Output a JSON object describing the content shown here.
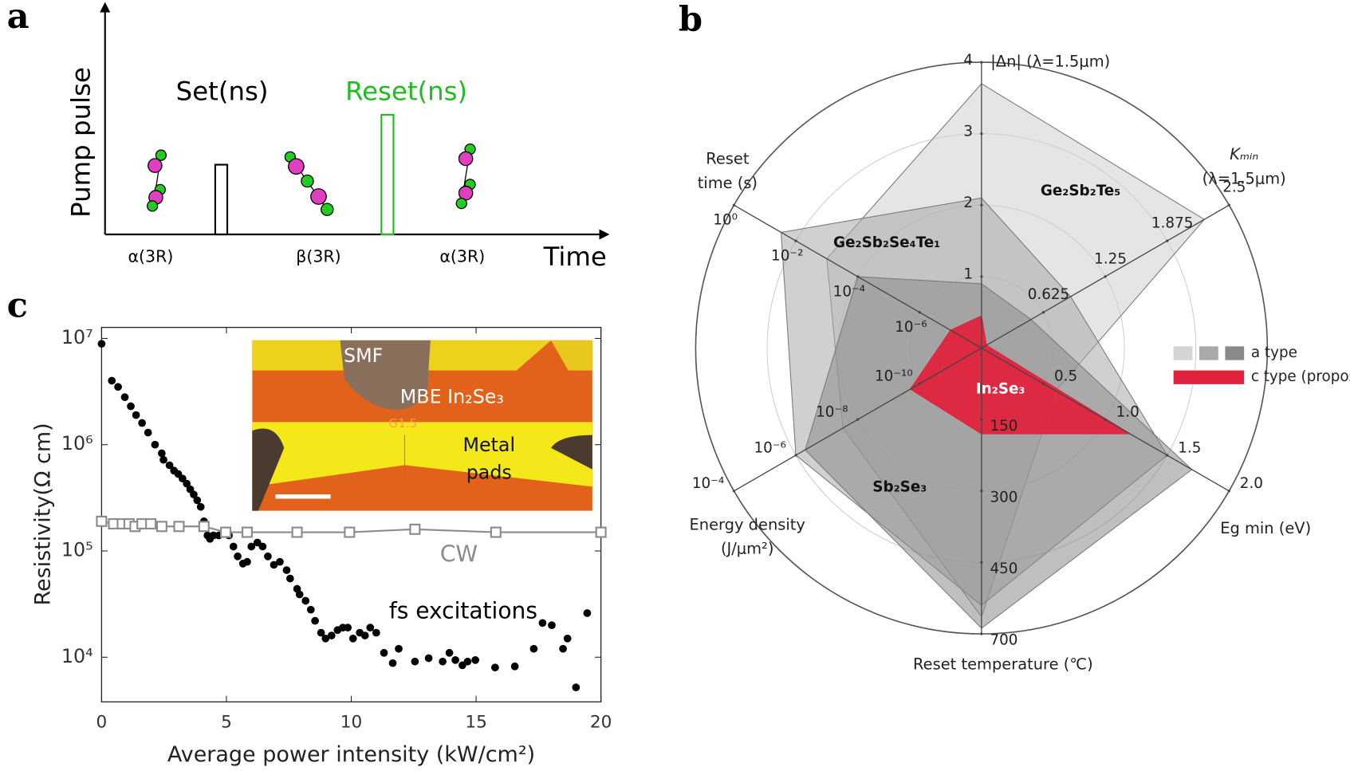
{
  "panel_labels": [
    "a",
    "b",
    "c"
  ],
  "diagram": {
    "y_label": "Pump pulse",
    "x_label": "Time",
    "set_label": "Set(ns)",
    "reset_label": "Reset(ns)",
    "phases": [
      "α(3R)",
      "β(3R)",
      "α(3R)"
    ]
  },
  "chart_data": [
    {
      "type": "radar",
      "axes": [
        {
          "label": [
            "|Δn| (λ=1.5μm)"
          ],
          "lim": [
            0,
            4
          ],
          "ticks": [
            1,
            2,
            3,
            4
          ]
        },
        {
          "label": [
            "Kₘᵢₙ",
            "(λ=1.5μm)"
          ],
          "lim": [
            0,
            2.5
          ],
          "ticks": [
            0.625,
            1.25,
            1.875,
            2.5
          ]
        },
        {
          "label": [
            "Eg min (eV)"
          ],
          "lim": [
            0,
            2
          ],
          "ticks": [
            0.5,
            {
              "value": 1,
              "label": "1.0"
            },
            1.5,
            {
              "value": 2,
              "label": "2.0"
            }
          ]
        },
        {
          "label": [
            "Reset temperature (℃)"
          ],
          "lim": [
            0,
            700
          ],
          "ticks": [
            150,
            300,
            450,
            700
          ]
        },
        {
          "label": [
            "Energy density",
            "(J/μm²)"
          ],
          "lim": [
            1e-12,
            0.0001
          ],
          "log": true,
          "ticks": [
            {
              "value": 1e-10,
              "label": "10⁻¹⁰"
            },
            {
              "value": 1e-08,
              "label": "10⁻⁸"
            },
            {
              "value": 1e-06,
              "label": "10⁻⁶"
            },
            {
              "value": 0.0001,
              "label": "10⁻⁴"
            }
          ]
        },
        {
          "label": [
            "Reset",
            "time (s)"
          ],
          "lim": [
            1e-08,
            1
          ],
          "log": true,
          "ticks": [
            {
              "value": 1e-06,
              "label": "10⁻⁶"
            },
            {
              "value": 0.0001,
              "label": "10⁻⁴"
            },
            {
              "value": 0.01,
              "label": "10⁻²"
            },
            {
              "value": 1,
              "label": "10⁰"
            }
          ]
        }
      ],
      "series": [
        {
          "name": "Ge₂Sb₂Te₅",
          "color": "#cfcfcf",
          "values": [
            3.7,
            2.25,
            0.6,
            640,
            3e-08,
            0.001
          ]
        },
        {
          "name": "Ge₂Sb₂Se₄Te₁",
          "color": "#a9a9a9",
          "values": [
            2.1,
            0.9,
            1.5,
            600,
            1e-06,
            0.03
          ]
        },
        {
          "name": "Sb₂Se₃",
          "color": "#8a8a8a",
          "values": [
            0.9,
            0.5,
            1.7,
            680,
            5e-07,
            0.0001
          ]
        },
        {
          "name": "In₂Se₃",
          "color": "#e0233c",
          "values": [
            0.45,
            0.05,
            1.2,
            180,
            2e-10,
            1e-07
          ]
        }
      ],
      "legend": [
        {
          "label": "a type",
          "colors": [
            "#d4d4d4",
            "#a9a9a9",
            "#8a8a8a"
          ]
        },
        {
          "label": "c type (proposed)",
          "colors": [
            "#e0233c"
          ]
        }
      ]
    },
    {
      "type": "scatter",
      "x_label": "Average power intensity (kW/cm²)",
      "y_label": "Resistivity(Ω cm)",
      "xlim": [
        0,
        20
      ],
      "xticks": [
        0,
        5,
        10,
        15,
        20
      ],
      "ylim": [
        3800,
        12700000
      ],
      "log_y": true,
      "yticks": [
        {
          "value": 10000,
          "label": "10⁴"
        },
        {
          "value": 100000,
          "label": "10⁵"
        },
        {
          "value": 1000000,
          "label": "10⁶"
        },
        {
          "value": 10000000,
          "label": "10⁷"
        }
      ],
      "inset_labels": [
        "SMF",
        "MBE In₂Se₃",
        "G1.5",
        "Metal",
        "pads"
      ],
      "series": [
        {
          "name": "fs excitations",
          "color": "#000000",
          "marker": "circle",
          "x": [
            0,
            0.41,
            0.66,
            0.93,
            1.17,
            1.38,
            1.62,
            1.86,
            2.14,
            2.41,
            2.48,
            2.72,
            2.9,
            3.07,
            3.24,
            3.41,
            3.55,
            3.69,
            3.83,
            3.97,
            4.1,
            4.24,
            4.34,
            4.48,
            4.69,
            4.9,
            5.1,
            5.28,
            5.45,
            5.66,
            5.83,
            6.0,
            6.24,
            6.45,
            6.66,
            6.9,
            7.14,
            7.41,
            7.55,
            7.83,
            7.93,
            8.17,
            8.38,
            8.55,
            8.79,
            8.97,
            9.21,
            9.45,
            9.66,
            9.86,
            10.07,
            10.34,
            10.55,
            10.76,
            11.0,
            11.31,
            11.66,
            11.9,
            12.55,
            13.1,
            13.66,
            13.93,
            14.17,
            14.45,
            14.66,
            14.97,
            15.76,
            16.55,
            17.31,
            17.66,
            18.03,
            18.48,
            18.66,
            19.0,
            19.45
          ],
          "values": [
            8900000,
            4000000,
            3500000,
            2800000,
            2300000,
            1900000,
            1600000,
            1300000,
            1000000,
            830000,
            720000,
            640000,
            570000,
            530000,
            480000,
            430000,
            380000,
            340000,
            300000,
            260000,
            190000,
            140000,
            130000,
            140000,
            140000,
            150000,
            140000,
            110000,
            89000,
            76000,
            79000,
            110000,
            120000,
            110000,
            89000,
            74000,
            79000,
            66000,
            55000,
            44000,
            39000,
            34000,
            28000,
            22000,
            17000,
            15000,
            16000,
            18000,
            19000,
            19000,
            15000,
            17000,
            16000,
            19000,
            17000,
            11000,
            8800,
            12000,
            9100,
            9800,
            9100,
            11000,
            9400,
            8400,
            9100,
            9400,
            8000,
            8200,
            12000,
            21000,
            20000,
            12000,
            15000,
            5200,
            26000
          ]
        },
        {
          "name": "CW",
          "color": "#8c8c8c",
          "marker": "square",
          "x": [
            0,
            0.48,
            0.83,
            1.1,
            1.34,
            1.62,
            1.97,
            2.41,
            3.1,
            4.1,
            4.97,
            5.83,
            7.83,
            9.93,
            12.55,
            15.79,
            20
          ],
          "values": [
            190000,
            180000,
            180000,
            180000,
            170000,
            180000,
            180000,
            170000,
            170000,
            170000,
            150000,
            150000,
            150000,
            150000,
            160000,
            150000,
            150000
          ]
        }
      ]
    }
  ]
}
